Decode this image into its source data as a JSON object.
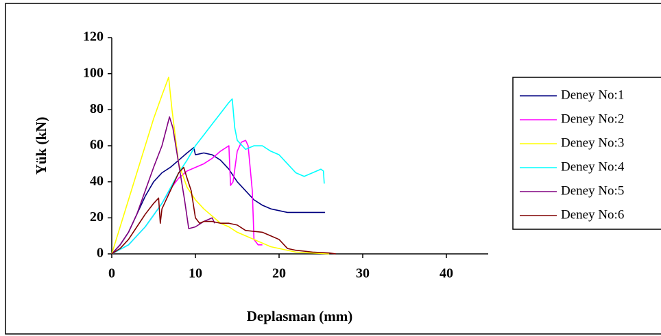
{
  "chart_data": {
    "type": "line",
    "x_label": "Deplasman (mm)",
    "y_label": "Yük (kN)",
    "xlim": [
      0,
      45
    ],
    "xticks": [
      0,
      10,
      20,
      30,
      40
    ],
    "ylim": [
      0,
      120
    ],
    "yticks": [
      0,
      20,
      40,
      60,
      80,
      100,
      120
    ],
    "grid": false,
    "legend": "right",
    "series": [
      {
        "name": "Deney No:1",
        "color": "#000080",
        "x": [
          0,
          1,
          2,
          3,
          4,
          5,
          6,
          7,
          8,
          9,
          9.8,
          10,
          11,
          12,
          13,
          14,
          15,
          16,
          17,
          18,
          19,
          20,
          21,
          22,
          24,
          25.5
        ],
        "values": [
          0,
          5,
          12,
          22,
          32,
          40,
          45,
          48,
          52,
          56,
          59,
          55,
          56,
          55,
          52,
          47,
          40,
          35,
          30,
          27,
          25,
          24,
          23,
          23,
          23,
          23
        ]
      },
      {
        "name": "Deney No:2",
        "color": "#ff00ff",
        "x": [
          0,
          2,
          4,
          6,
          7,
          8,
          9,
          10,
          11,
          12,
          13,
          14,
          14.2,
          14.5,
          15,
          15.5,
          16,
          16.3,
          16.8,
          17,
          17.5,
          18
        ],
        "values": [
          0,
          5,
          15,
          28,
          36,
          42,
          46,
          48,
          50,
          53,
          57,
          60,
          38,
          40,
          57,
          62,
          63,
          60,
          35,
          8,
          5,
          5
        ]
      },
      {
        "name": "Deney No:3",
        "color": "#ffff00",
        "x": [
          0,
          1,
          2,
          3,
          4,
          5,
          6,
          6.8,
          7.2,
          8,
          9,
          10,
          11,
          12,
          13,
          14,
          15,
          16,
          17,
          18,
          19,
          20,
          21,
          22,
          24,
          26
        ],
        "values": [
          0,
          15,
          30,
          45,
          60,
          75,
          88,
          98,
          80,
          50,
          37,
          30,
          25,
          21,
          17,
          15,
          12,
          10,
          8,
          6,
          4,
          3,
          2,
          1,
          0.5,
          0
        ]
      },
      {
        "name": "Deney No:4",
        "color": "#00ffff",
        "x": [
          0,
          2,
          4,
          6,
          8,
          9,
          10,
          11,
          12,
          13,
          14,
          14.4,
          14.7,
          15,
          16,
          17,
          18,
          19,
          20,
          21,
          22,
          23,
          24,
          25,
          25.3,
          25.4
        ],
        "values": [
          0,
          5,
          15,
          28,
          45,
          52,
          60,
          66,
          72,
          78,
          84,
          86,
          70,
          63,
          58,
          60,
          60,
          57,
          55,
          50,
          45,
          43,
          45,
          47,
          46,
          39
        ]
      },
      {
        "name": "Deney No:5",
        "color": "#800080",
        "x": [
          0,
          1,
          2,
          3,
          4,
          5,
          6,
          6.9,
          7.3,
          8,
          8.7,
          9.2,
          10,
          11,
          12,
          12.3
        ],
        "values": [
          0,
          5,
          12,
          22,
          35,
          48,
          60,
          76,
          70,
          50,
          30,
          14,
          15,
          18,
          20,
          17
        ]
      },
      {
        "name": "Deney No:6",
        "color": "#800000",
        "x": [
          0,
          1,
          2,
          3,
          4,
          5,
          5.6,
          5.8,
          6,
          7,
          8,
          8.6,
          9,
          9.5,
          10,
          10.5,
          11,
          12,
          13,
          14,
          15,
          16,
          18,
          19,
          20,
          21,
          22,
          24,
          26,
          26.8
        ],
        "values": [
          0,
          3,
          8,
          15,
          22,
          28,
          31,
          17,
          25,
          35,
          45,
          48,
          42,
          35,
          20,
          17,
          18,
          18,
          17,
          17,
          16,
          13,
          12,
          10,
          8,
          3,
          2,
          1,
          0.5,
          0
        ]
      }
    ]
  }
}
